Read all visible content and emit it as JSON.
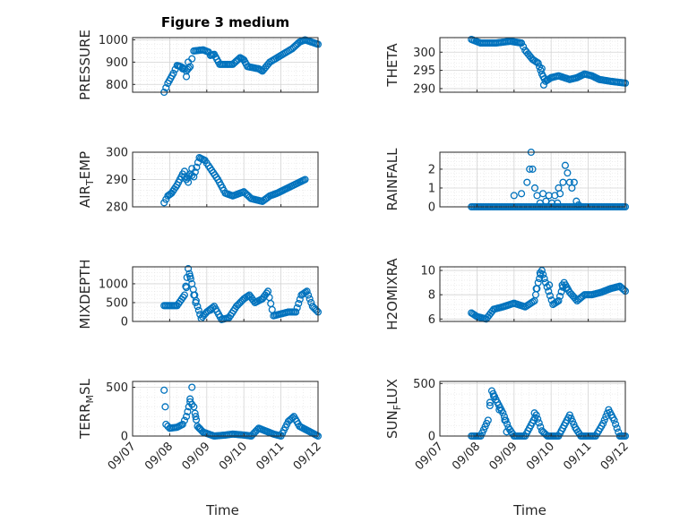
{
  "title": "Figure 3 medium",
  "marker_color": "#0072BD",
  "chart_data": [
    {
      "type": "scatter",
      "ylabel": "PRESSURE",
      "xlabel": "",
      "ylim": [
        765,
        1010
      ],
      "yticks": [
        800,
        900,
        1000
      ],
      "xlim": [
        0,
        5
      ],
      "xticks": [
        0,
        1,
        2,
        3,
        4,
        5
      ],
      "xticklabels": [
        "09/07",
        "09/08",
        "09/09",
        "09/10",
        "09/11",
        "09/12"
      ],
      "keys": [
        [
          0.85,
          765
        ],
        [
          0.95,
          805
        ],
        [
          1.1,
          850
        ],
        [
          1.2,
          885
        ],
        [
          1.3,
          880
        ],
        [
          1.4,
          870
        ],
        [
          1.45,
          860
        ],
        [
          1.55,
          880
        ],
        [
          1.65,
          950
        ],
        [
          1.9,
          955
        ],
        [
          2.05,
          945
        ],
        [
          2.1,
          930
        ],
        [
          2.2,
          935
        ],
        [
          2.35,
          890
        ],
        [
          2.7,
          890
        ],
        [
          2.9,
          920
        ],
        [
          3.0,
          910
        ],
        [
          3.1,
          880
        ],
        [
          3.4,
          870
        ],
        [
          3.5,
          860
        ],
        [
          3.7,
          900
        ],
        [
          3.8,
          910
        ],
        [
          4.0,
          930
        ],
        [
          4.3,
          960
        ],
        [
          4.5,
          990
        ],
        [
          4.65,
          1000
        ],
        [
          5.0,
          980
        ]
      ],
      "extras": [
        [
          1.45,
          835
        ],
        [
          1.5,
          900
        ],
        [
          1.35,
          870
        ]
      ]
    },
    {
      "type": "scatter",
      "ylabel": "THETA",
      "xlabel": "",
      "ylim": [
        289,
        304
      ],
      "yticks": [
        290,
        295,
        300
      ],
      "xlim": [
        0,
        5
      ],
      "xticks": [
        0,
        1,
        2,
        3,
        4,
        5
      ],
      "xticklabels": [
        "09/07",
        "09/08",
        "09/09",
        "09/10",
        "09/11",
        "09/12"
      ],
      "keys": [
        [
          0.85,
          303.5
        ],
        [
          1.1,
          302.5
        ],
        [
          1.5,
          302.5
        ],
        [
          1.9,
          303
        ],
        [
          2.2,
          302.5
        ],
        [
          2.3,
          300.5
        ],
        [
          2.5,
          298
        ],
        [
          2.65,
          297
        ],
        [
          2.75,
          294
        ],
        [
          2.85,
          292
        ],
        [
          3.0,
          293
        ],
        [
          3.2,
          293.5
        ],
        [
          3.5,
          292.5
        ],
        [
          3.7,
          293
        ],
        [
          3.9,
          294
        ],
        [
          4.1,
          293.5
        ],
        [
          4.3,
          292.5
        ],
        [
          4.6,
          292
        ],
        [
          5.0,
          291.5
        ]
      ],
      "extras": [
        [
          2.8,
          291
        ],
        [
          2.9,
          292.5
        ],
        [
          2.75,
          295.5
        ]
      ]
    },
    {
      "type": "scatter",
      "ylabel": "AIR_TEMP",
      "xlabel": "",
      "ylim": [
        280,
        300
      ],
      "yticks": [
        280,
        290,
        300
      ],
      "xlim": [
        0,
        5
      ],
      "xticks": [
        0,
        1,
        2,
        3,
        4,
        5
      ],
      "xticklabels": [
        "09/07",
        "09/08",
        "09/09",
        "09/10",
        "09/11",
        "09/12"
      ],
      "keys": [
        [
          0.85,
          281.5
        ],
        [
          0.95,
          284
        ],
        [
          1.05,
          285
        ],
        [
          1.2,
          288
        ],
        [
          1.35,
          292
        ],
        [
          1.45,
          290
        ],
        [
          1.55,
          292
        ],
        [
          1.65,
          291
        ],
        [
          1.8,
          298
        ],
        [
          1.95,
          297
        ],
        [
          2.05,
          295
        ],
        [
          2.3,
          290
        ],
        [
          2.5,
          285
        ],
        [
          2.7,
          284
        ],
        [
          3.0,
          285.5
        ],
        [
          3.2,
          283
        ],
        [
          3.5,
          282
        ],
        [
          3.7,
          284
        ],
        [
          3.9,
          285
        ],
        [
          4.2,
          287
        ],
        [
          4.5,
          289
        ],
        [
          4.65,
          290
        ]
      ],
      "extras": [
        [
          1.4,
          293
        ],
        [
          1.6,
          294
        ],
        [
          1.5,
          289
        ]
      ]
    },
    {
      "type": "scatter",
      "ylabel": "RAINFALL",
      "xlabel": "",
      "ylim": [
        0,
        2.9
      ],
      "yticks": [
        0,
        1,
        2
      ],
      "xlim": [
        0,
        5
      ],
      "xticks": [
        0,
        1,
        2,
        3,
        4,
        5
      ],
      "xticklabels": [
        "09/07",
        "09/08",
        "09/09",
        "09/10",
        "09/11",
        "09/12"
      ],
      "keys": [
        [
          0.85,
          0
        ],
        [
          5.0,
          0
        ]
      ],
      "extras": [
        [
          2.0,
          0.6
        ],
        [
          2.2,
          0.7
        ],
        [
          2.35,
          1.3
        ],
        [
          2.42,
          2.0
        ],
        [
          2.46,
          2.9
        ],
        [
          2.5,
          2.0
        ],
        [
          2.56,
          1.0
        ],
        [
          2.62,
          0.6
        ],
        [
          2.7,
          0.2
        ],
        [
          2.78,
          0.7
        ],
        [
          2.86,
          0.3
        ],
        [
          2.94,
          0.6
        ],
        [
          3.02,
          0.2
        ],
        [
          3.1,
          0.6
        ],
        [
          3.17,
          0.2
        ],
        [
          3.24,
          0.7
        ],
        [
          3.32,
          1.3
        ],
        [
          3.38,
          2.2
        ],
        [
          3.44,
          1.8
        ],
        [
          3.5,
          1.3
        ],
        [
          3.56,
          1.0
        ],
        [
          3.62,
          1.3
        ],
        [
          3.68,
          0.3
        ],
        [
          3.74,
          0.1
        ],
        [
          3.2,
          1.0
        ]
      ]
    },
    {
      "type": "scatter",
      "ylabel": "MIXDEPTH",
      "xlabel": "",
      "ylim": [
        0,
        1450
      ],
      "yticks": [
        0,
        500,
        1000
      ],
      "xlim": [
        0,
        5
      ],
      "xticks": [
        0,
        1,
        2,
        3,
        4,
        5
      ],
      "xticklabels": [
        "09/07",
        "09/08",
        "09/09",
        "09/10",
        "09/11",
        "09/12"
      ],
      "keys": [
        [
          0.85,
          420
        ],
        [
          1.2,
          420
        ],
        [
          1.4,
          700
        ],
        [
          1.5,
          1400
        ],
        [
          1.6,
          1000
        ],
        [
          1.75,
          400
        ],
        [
          1.85,
          80
        ],
        [
          2.0,
          250
        ],
        [
          2.2,
          400
        ],
        [
          2.4,
          50
        ],
        [
          2.6,
          100
        ],
        [
          2.8,
          400
        ],
        [
          3.0,
          600
        ],
        [
          3.15,
          700
        ],
        [
          3.3,
          500
        ],
        [
          3.5,
          600
        ],
        [
          3.65,
          800
        ],
        [
          3.8,
          150
        ],
        [
          4.0,
          200
        ],
        [
          4.2,
          250
        ],
        [
          4.4,
          250
        ],
        [
          4.55,
          700
        ],
        [
          4.7,
          800
        ],
        [
          4.85,
          400
        ],
        [
          5.0,
          250
        ]
      ],
      "extras": [
        [
          1.45,
          900
        ],
        [
          1.55,
          1200
        ],
        [
          1.65,
          700
        ],
        [
          1.7,
          500
        ],
        [
          2.1,
          300
        ]
      ]
    },
    {
      "type": "scatter",
      "ylabel": "H2OMIXRA",
      "xlabel": "",
      "ylim": [
        5.8,
        10.3
      ],
      "yticks": [
        6,
        8,
        10
      ],
      "xlim": [
        0,
        5
      ],
      "xticks": [
        0,
        1,
        2,
        3,
        4,
        5
      ],
      "xticklabels": [
        "09/07",
        "09/08",
        "09/09",
        "09/10",
        "09/11",
        "09/12"
      ],
      "keys": [
        [
          0.85,
          6.5
        ],
        [
          1.0,
          6.2
        ],
        [
          1.25,
          6.0
        ],
        [
          1.45,
          6.8
        ],
        [
          1.7,
          7.0
        ],
        [
          2.0,
          7.3
        ],
        [
          2.3,
          7.0
        ],
        [
          2.55,
          7.5
        ],
        [
          2.65,
          9.0
        ],
        [
          2.75,
          10.0
        ],
        [
          2.85,
          9.0
        ],
        [
          3.05,
          7.2
        ],
        [
          3.2,
          7.5
        ],
        [
          3.35,
          9.0
        ],
        [
          3.5,
          8.2
        ],
        [
          3.7,
          7.5
        ],
        [
          3.9,
          8.0
        ],
        [
          4.1,
          8.0
        ],
        [
          4.35,
          8.2
        ],
        [
          4.6,
          8.5
        ],
        [
          4.85,
          8.7
        ],
        [
          5.0,
          8.3
        ]
      ],
      "extras": [
        [
          2.6,
          8.5
        ],
        [
          2.7,
          9.8
        ],
        [
          3.3,
          8.8
        ],
        [
          3.4,
          8.5
        ],
        [
          2.95,
          8.8
        ]
      ]
    },
    {
      "type": "scatter",
      "ylabel": "TERR_MSL",
      "xlabel": "Time",
      "ylim": [
        0,
        560
      ],
      "yticks": [
        0,
        500
      ],
      "xlim": [
        0,
        5
      ],
      "xticks": [
        0,
        1,
        2,
        3,
        4,
        5
      ],
      "xticklabels": [
        "09/07",
        "09/08",
        "09/09",
        "09/10",
        "09/11",
        "09/12"
      ],
      "keys": [
        [
          0.85,
          470
        ],
        [
          0.9,
          120
        ],
        [
          1.0,
          80
        ],
        [
          1.2,
          90
        ],
        [
          1.35,
          120
        ],
        [
          1.45,
          200
        ],
        [
          1.55,
          350
        ],
        [
          1.65,
          300
        ],
        [
          1.75,
          100
        ],
        [
          1.9,
          40
        ],
        [
          2.2,
          0
        ],
        [
          2.5,
          10
        ],
        [
          2.7,
          20
        ],
        [
          3.0,
          10
        ],
        [
          3.2,
          0
        ],
        [
          3.4,
          80
        ],
        [
          3.6,
          50
        ],
        [
          3.8,
          20
        ],
        [
          4.0,
          0
        ],
        [
          4.2,
          150
        ],
        [
          4.35,
          200
        ],
        [
          4.5,
          100
        ],
        [
          4.7,
          60
        ],
        [
          4.85,
          30
        ],
        [
          5.0,
          0
        ]
      ],
      "extras": [
        [
          0.88,
          300
        ],
        [
          1.6,
          500
        ],
        [
          1.55,
          380
        ],
        [
          1.7,
          200
        ],
        [
          1.8,
          80
        ]
      ]
    },
    {
      "type": "scatter",
      "ylabel": "SUN_FLUX",
      "xlabel": "Time",
      "ylim": [
        0,
        520
      ],
      "yticks": [
        0,
        500
      ],
      "xlim": [
        0,
        5
      ],
      "xticks": [
        0,
        1,
        2,
        3,
        4,
        5
      ],
      "xticklabels": [
        "09/07",
        "09/08",
        "09/09",
        "09/10",
        "09/11",
        "09/12"
      ],
      "keys": [
        [
          0.85,
          0
        ],
        [
          1.1,
          0
        ],
        [
          1.3,
          150
        ],
        [
          1.4,
          430
        ],
        [
          1.55,
          320
        ],
        [
          1.7,
          220
        ],
        [
          1.85,
          80
        ],
        [
          2.0,
          0
        ],
        [
          2.3,
          0
        ],
        [
          2.45,
          100
        ],
        [
          2.6,
          200
        ],
        [
          2.75,
          50
        ],
        [
          2.9,
          0
        ],
        [
          3.2,
          0
        ],
        [
          3.35,
          100
        ],
        [
          3.5,
          200
        ],
        [
          3.65,
          80
        ],
        [
          3.8,
          0
        ],
        [
          4.2,
          0
        ],
        [
          4.4,
          120
        ],
        [
          4.55,
          250
        ],
        [
          4.7,
          150
        ],
        [
          4.85,
          0
        ],
        [
          5.0,
          0
        ]
      ],
      "extras": [
        [
          1.35,
          320
        ],
        [
          1.45,
          380
        ],
        [
          1.6,
          250
        ],
        [
          1.75,
          150
        ],
        [
          1.8,
          40
        ],
        [
          2.55,
          220
        ]
      ]
    }
  ]
}
